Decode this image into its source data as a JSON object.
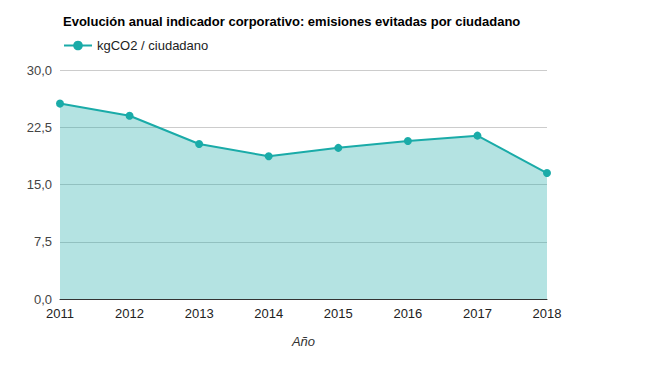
{
  "chart_data": {
    "type": "line",
    "title": "Evolución anual indicador corporativo: emisiones evitadas por ciudadano",
    "x_label": "Año",
    "categories": [
      "2011",
      "2012",
      "2013",
      "2014",
      "2015",
      "2016",
      "2017",
      "2018"
    ],
    "series": [
      {
        "name": "kgCO2 / ciudadano",
        "color": "#1aaba8",
        "marker": "circle",
        "values": [
          25.6,
          24.0,
          20.3,
          18.7,
          19.8,
          20.7,
          21.4,
          16.5
        ]
      }
    ],
    "ylim": [
      0,
      30
    ],
    "yticks": [
      {
        "value": 0,
        "label": "0,0"
      },
      {
        "value": 7.5,
        "label": "7,5"
      },
      {
        "value": 15,
        "label": "15,0"
      },
      {
        "value": 22.5,
        "label": "22,5"
      },
      {
        "value": 30,
        "label": "30,0"
      }
    ],
    "grid": true,
    "legend": "top-left"
  }
}
